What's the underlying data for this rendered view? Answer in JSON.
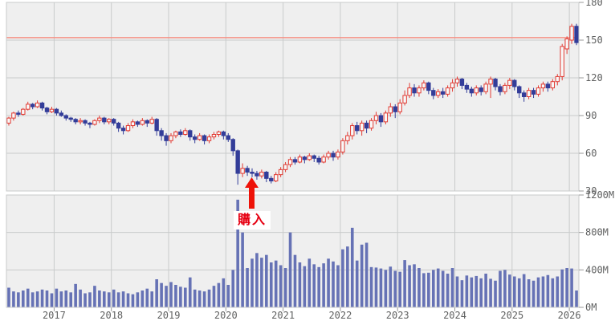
{
  "chart_data": {
    "type": "candlestick+volume",
    "title": "",
    "start_month": "2016-03",
    "x_axis": {
      "tick_labels": [
        "2017",
        "2018",
        "2019",
        "2020",
        "2021",
        "2022",
        "2023",
        "2024",
        "2025",
        "2026"
      ]
    },
    "price_axis": {
      "min": 30,
      "max": 180,
      "tick_values": [
        180,
        150,
        120,
        90,
        60,
        30
      ],
      "tick_labels": [
        "180",
        "150",
        "120",
        "90",
        "60",
        "30"
      ]
    },
    "volume_axis": {
      "min": 0,
      "max": 1200,
      "tick_values": [
        1200,
        800,
        400,
        0
      ],
      "tick_labels": [
        "1200M",
        "800M",
        "400M",
        "0M"
      ]
    },
    "reference_line": {
      "price": 152,
      "color": "#f49084"
    },
    "annotation": {
      "label": "購入",
      "month": "2020-06",
      "text_color": "#e60012",
      "arrow_color": "#ee1208"
    },
    "colors": {
      "background": "#efefef",
      "grid": "#c9cbcb",
      "up": "#e23a32",
      "up_fill": "#f8f8f8",
      "down": "#333d99",
      "volume": "#6672b5",
      "axis_text": "#5f6060",
      "tick": "#999999"
    },
    "months_format": [
      "open",
      "high",
      "low",
      "close",
      "volume_millions"
    ],
    "months": [
      [
        84,
        89,
        82,
        88,
        210
      ],
      [
        88,
        93,
        86,
        92,
        170
      ],
      [
        92,
        94,
        89,
        91,
        160
      ],
      [
        91,
        96,
        90,
        95,
        180
      ],
      [
        95,
        101,
        94,
        99,
        200
      ],
      [
        99,
        100,
        95,
        97,
        160
      ],
      [
        97,
        102,
        96,
        100,
        170
      ],
      [
        100,
        101,
        94,
        96,
        190
      ],
      [
        96,
        97,
        91,
        93,
        180
      ],
      [
        93,
        97,
        92,
        95,
        150
      ],
      [
        95,
        96,
        90,
        92,
        200
      ],
      [
        92,
        94,
        89,
        90,
        170
      ],
      [
        90,
        91,
        86,
        88,
        180
      ],
      [
        88,
        89,
        85,
        87,
        160
      ],
      [
        87,
        88,
        83,
        85,
        250
      ],
      [
        85,
        88,
        83,
        86,
        190
      ],
      [
        86,
        87,
        82,
        84,
        150
      ],
      [
        84,
        85,
        80,
        83,
        160
      ],
      [
        83,
        87,
        82,
        86,
        230
      ],
      [
        86,
        90,
        84,
        88,
        180
      ],
      [
        88,
        89,
        83,
        85,
        170
      ],
      [
        85,
        88,
        83,
        87,
        160
      ],
      [
        87,
        88,
        82,
        84,
        190
      ],
      [
        84,
        85,
        77,
        80,
        160
      ],
      [
        80,
        82,
        75,
        78,
        170
      ],
      [
        78,
        84,
        77,
        82,
        150
      ],
      [
        82,
        87,
        80,
        85,
        140
      ],
      [
        85,
        86,
        81,
        83,
        160
      ],
      [
        83,
        88,
        82,
        86,
        180
      ],
      [
        86,
        87,
        81,
        84,
        200
      ],
      [
        84,
        89,
        83,
        87,
        170
      ],
      [
        87,
        88,
        74,
        78,
        300
      ],
      [
        78,
        80,
        70,
        74,
        260
      ],
      [
        74,
        76,
        66,
        70,
        230
      ],
      [
        70,
        76,
        68,
        74,
        270
      ],
      [
        74,
        78,
        72,
        77,
        240
      ],
      [
        77,
        79,
        73,
        75,
        220
      ],
      [
        75,
        80,
        74,
        78,
        210
      ],
      [
        78,
        79,
        70,
        73,
        320
      ],
      [
        73,
        75,
        68,
        71,
        190
      ],
      [
        71,
        76,
        70,
        74,
        180
      ],
      [
        74,
        75,
        67,
        70,
        170
      ],
      [
        70,
        75,
        68,
        73,
        190
      ],
      [
        73,
        77,
        71,
        75,
        230
      ],
      [
        75,
        78,
        73,
        77,
        260
      ],
      [
        77,
        78,
        71,
        74,
        310
      ],
      [
        74,
        76,
        69,
        71,
        240
      ],
      [
        71,
        72,
        58,
        62,
        400
      ],
      [
        62,
        63,
        35,
        44,
        1150
      ],
      [
        44,
        52,
        41,
        48,
        800
      ],
      [
        48,
        50,
        42,
        45,
        420
      ],
      [
        45,
        48,
        41,
        44,
        520
      ],
      [
        44,
        46,
        39,
        42,
        580
      ],
      [
        42,
        47,
        40,
        45,
        530
      ],
      [
        45,
        46,
        37,
        40,
        560
      ],
      [
        40,
        42,
        36,
        38,
        480
      ],
      [
        38,
        45,
        37,
        43,
        500
      ],
      [
        43,
        49,
        41,
        47,
        450
      ],
      [
        47,
        53,
        45,
        51,
        420
      ],
      [
        51,
        57,
        49,
        55,
        800
      ],
      [
        55,
        57,
        51,
        53,
        560
      ],
      [
        53,
        59,
        52,
        57,
        480
      ],
      [
        57,
        58,
        52,
        55,
        440
      ],
      [
        55,
        60,
        54,
        58,
        520
      ],
      [
        58,
        59,
        53,
        56,
        460
      ],
      [
        56,
        58,
        51,
        53,
        430
      ],
      [
        53,
        59,
        52,
        57,
        470
      ],
      [
        57,
        62,
        55,
        60,
        520
      ],
      [
        60,
        62,
        54,
        57,
        490
      ],
      [
        57,
        63,
        55,
        61,
        450
      ],
      [
        61,
        72,
        59,
        70,
        620
      ],
      [
        70,
        77,
        67,
        74,
        650
      ],
      [
        74,
        84,
        71,
        82,
        850
      ],
      [
        82,
        85,
        75,
        78,
        500
      ],
      [
        78,
        86,
        74,
        84,
        670
      ],
      [
        84,
        86,
        76,
        80,
        690
      ],
      [
        80,
        88,
        78,
        86,
        430
      ],
      [
        86,
        93,
        83,
        90,
        425
      ],
      [
        90,
        92,
        81,
        85,
        415
      ],
      [
        85,
        94,
        83,
        92,
        400
      ],
      [
        92,
        100,
        89,
        97,
        435
      ],
      [
        97,
        99,
        88,
        93,
        390
      ],
      [
        93,
        103,
        91,
        100,
        380
      ],
      [
        100,
        110,
        98,
        106,
        505
      ],
      [
        106,
        116,
        104,
        112,
        450
      ],
      [
        112,
        115,
        105,
        108,
        460
      ],
      [
        108,
        114,
        105,
        112,
        420
      ],
      [
        112,
        118,
        110,
        116,
        365
      ],
      [
        116,
        117,
        107,
        110,
        370
      ],
      [
        110,
        112,
        103,
        106,
        400
      ],
      [
        106,
        111,
        104,
        109,
        415
      ],
      [
        109,
        112,
        104,
        107,
        390
      ],
      [
        107,
        114,
        105,
        112,
        360
      ],
      [
        112,
        119,
        109,
        116,
        420
      ],
      [
        116,
        121,
        113,
        119,
        330
      ],
      [
        119,
        120,
        111,
        114,
        290
      ],
      [
        114,
        116,
        108,
        111,
        340
      ],
      [
        111,
        113,
        105,
        108,
        320
      ],
      [
        108,
        114,
        106,
        112,
        335
      ],
      [
        112,
        114,
        106,
        109,
        310
      ],
      [
        109,
        117,
        107,
        115,
        360
      ],
      [
        115,
        121,
        104,
        119,
        305
      ],
      [
        119,
        120,
        110,
        113,
        285
      ],
      [
        113,
        115,
        106,
        109,
        390
      ],
      [
        109,
        116,
        107,
        114,
        400
      ],
      [
        114,
        120,
        111,
        118,
        350
      ],
      [
        118,
        119,
        110,
        113,
        330
      ],
      [
        113,
        114,
        104,
        108,
        310
      ],
      [
        108,
        110,
        101,
        105,
        355
      ],
      [
        105,
        112,
        103,
        110,
        300
      ],
      [
        110,
        112,
        104,
        107,
        285
      ],
      [
        107,
        114,
        105,
        112,
        320
      ],
      [
        112,
        117,
        109,
        115,
        330
      ],
      [
        115,
        117,
        109,
        112,
        345
      ],
      [
        112,
        119,
        110,
        117,
        310
      ],
      [
        117,
        123,
        114,
        121,
        330
      ],
      [
        121,
        147,
        118,
        145,
        405
      ],
      [
        143,
        153,
        139,
        151,
        420
      ],
      [
        150,
        163,
        147,
        161,
        415
      ],
      [
        161,
        163,
        146,
        148,
        180
      ]
    ]
  }
}
